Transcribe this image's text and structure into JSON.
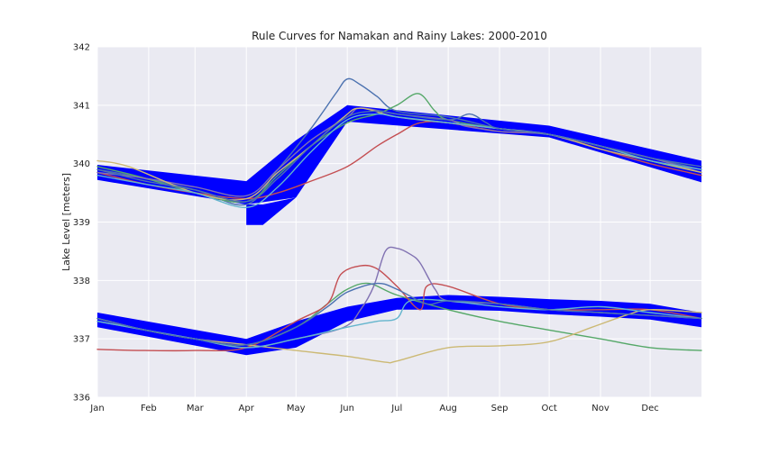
{
  "colors": {
    "background": "#ffffff",
    "plot_area": "#eaeaf2",
    "grid": "#ffffff",
    "rule_band": "#0000ff",
    "series_palette": [
      "#4c72b0",
      "#55a868",
      "#c44e52",
      "#8172b2",
      "#ccb974",
      "#64b5cd"
    ]
  },
  "chart_data": {
    "type": "line",
    "title": "Rule Curves for Namakan and Rainy Lakes: 2000-2010",
    "xlabel": "",
    "ylabel": "Lake Level [meters]",
    "xlim": [
      1,
      366
    ],
    "ylim": [
      336,
      342
    ],
    "yticks": [
      336,
      337,
      338,
      339,
      340,
      341,
      342
    ],
    "xtick_positions": [
      1,
      32,
      60,
      91,
      121,
      152,
      182,
      213,
      244,
      274,
      305,
      335
    ],
    "xtick_labels": [
      "Jan",
      "Feb",
      "Mar",
      "Apr",
      "May",
      "Jun",
      "Jul",
      "Aug",
      "Sep",
      "Oct",
      "Nov",
      "Dec"
    ],
    "grid": true,
    "legend": "none",
    "bands": [
      {
        "lake": "upper",
        "x": [
          1,
          91,
          121,
          152,
          274,
          366
        ],
        "upper": [
          339.98,
          339.7,
          340.4,
          341.0,
          340.65,
          340.05
        ],
        "lower": [
          339.72,
          339.3,
          339.42,
          340.72,
          340.45,
          339.68
        ],
        "extension": {
          "x": [
            91,
            101,
            121
          ],
          "upper": [
            339.3,
            339.3,
            339.42
          ],
          "lower": [
            338.95,
            338.95,
            339.42
          ]
        }
      },
      {
        "lake": "lower",
        "x": [
          1,
          91,
          121,
          152,
          182,
          213,
          244,
          274,
          305,
          335,
          366
        ],
        "upper": [
          337.45,
          337.0,
          337.3,
          337.55,
          337.7,
          337.75,
          337.72,
          337.68,
          337.65,
          337.6,
          337.45
        ],
        "lower": [
          337.2,
          336.72,
          336.85,
          337.3,
          337.5,
          337.5,
          337.48,
          337.42,
          337.38,
          337.33,
          337.2
        ]
      }
    ],
    "series": [
      {
        "lake": "upper",
        "x": [
          1,
          20,
          60,
          91,
          110,
          130,
          145,
          152,
          160,
          170,
          182,
          213,
          244,
          274,
          305,
          335,
          366
        ],
        "values": [
          339.9,
          339.8,
          339.55,
          339.3,
          339.9,
          340.6,
          341.2,
          341.45,
          341.35,
          341.15,
          340.9,
          340.8,
          340.6,
          340.5,
          340.3,
          340.1,
          339.9
        ]
      },
      {
        "lake": "upper",
        "x": [
          1,
          30,
          60,
          91,
          110,
          130,
          152,
          170,
          182,
          195,
          205,
          213,
          244,
          274,
          305,
          335,
          366
        ],
        "values": [
          339.95,
          339.75,
          339.5,
          339.35,
          339.8,
          340.3,
          340.7,
          340.85,
          341.0,
          341.2,
          340.9,
          340.75,
          340.6,
          340.5,
          340.3,
          340.05,
          339.85
        ]
      },
      {
        "lake": "upper",
        "x": [
          1,
          30,
          60,
          91,
          110,
          130,
          152,
          170,
          182,
          196,
          213,
          244,
          274,
          305,
          335,
          366
        ],
        "values": [
          339.85,
          339.65,
          339.5,
          339.4,
          339.5,
          339.7,
          339.95,
          340.3,
          340.5,
          340.7,
          340.7,
          340.55,
          340.5,
          340.25,
          340.0,
          339.8
        ]
      },
      {
        "lake": "upper",
        "x": [
          1,
          30,
          60,
          91,
          110,
          130,
          152,
          160,
          182,
          213,
          222,
          232,
          244,
          274,
          305,
          335,
          366
        ],
        "values": [
          339.85,
          339.75,
          339.6,
          339.45,
          339.9,
          340.4,
          340.8,
          340.95,
          340.85,
          340.75,
          340.65,
          340.6,
          340.55,
          340.5,
          340.3,
          340.1,
          339.85
        ]
      },
      {
        "lake": "upper",
        "x": [
          1,
          20,
          60,
          91,
          110,
          130,
          150,
          160,
          182,
          213,
          244,
          274,
          305,
          335,
          366
        ],
        "values": [
          340.05,
          339.95,
          339.5,
          339.4,
          339.85,
          340.3,
          340.8,
          340.95,
          340.8,
          340.7,
          340.6,
          340.5,
          340.25,
          340.05,
          339.85
        ]
      },
      {
        "lake": "upper",
        "x": [
          1,
          30,
          60,
          91,
          110,
          130,
          152,
          170,
          182,
          213,
          244,
          274,
          305,
          335,
          366
        ],
        "values": [
          339.8,
          339.65,
          339.5,
          339.25,
          339.6,
          340.2,
          340.75,
          340.85,
          340.8,
          340.7,
          340.6,
          340.5,
          340.3,
          340.05,
          339.9
        ]
      },
      {
        "lake": "upper",
        "x": [
          1,
          30,
          60,
          91,
          110,
          130,
          152,
          170,
          182,
          213,
          226,
          236,
          244,
          274,
          305,
          335,
          366
        ],
        "values": [
          339.9,
          339.7,
          339.55,
          339.35,
          339.75,
          340.3,
          340.8,
          340.9,
          340.85,
          340.75,
          340.85,
          340.7,
          340.6,
          340.5,
          340.3,
          340.1,
          339.95
        ]
      },
      {
        "lake": "lower",
        "x": [
          1,
          30,
          60,
          91,
          121,
          140,
          152,
          165,
          182,
          213,
          244,
          274,
          305,
          335,
          366
        ],
        "values": [
          337.35,
          337.15,
          337.0,
          336.9,
          337.2,
          337.6,
          337.85,
          337.95,
          337.75,
          337.5,
          337.3,
          337.15,
          337.0,
          336.85,
          336.8
        ]
      },
      {
        "lake": "lower",
        "x": [
          1,
          30,
          60,
          91,
          121,
          140,
          148,
          160,
          170,
          182,
          196,
          200,
          213,
          244,
          274,
          305,
          335,
          366
        ],
        "values": [
          336.82,
          336.8,
          336.8,
          336.85,
          337.3,
          337.6,
          338.1,
          338.25,
          338.2,
          337.9,
          337.5,
          337.9,
          337.9,
          337.6,
          337.5,
          337.5,
          337.5,
          337.35
        ]
      },
      {
        "lake": "lower",
        "x": [
          1,
          30,
          60,
          91,
          121,
          150,
          160,
          168,
          175,
          182,
          190,
          196,
          205,
          213,
          244,
          274,
          305,
          335,
          366
        ],
        "values": [
          337.3,
          337.15,
          337.0,
          336.85,
          337.0,
          337.2,
          337.5,
          337.9,
          338.5,
          338.55,
          338.45,
          338.3,
          337.85,
          337.65,
          337.6,
          337.5,
          337.45,
          337.4,
          337.35
        ]
      },
      {
        "lake": "lower",
        "x": [
          1,
          30,
          60,
          91,
          121,
          152,
          175,
          182,
          213,
          244,
          274,
          300,
          320,
          335,
          366
        ],
        "values": [
          337.35,
          337.15,
          337.0,
          336.9,
          336.8,
          336.7,
          336.6,
          336.62,
          336.85,
          336.88,
          336.95,
          337.2,
          337.4,
          337.5,
          337.45
        ]
      },
      {
        "lake": "lower",
        "x": [
          1,
          30,
          60,
          91,
          121,
          152,
          170,
          182,
          190,
          213,
          244,
          274,
          305,
          335,
          366
        ],
        "values": [
          337.3,
          337.15,
          337.0,
          336.85,
          337.0,
          337.2,
          337.3,
          337.35,
          337.65,
          337.65,
          337.55,
          337.5,
          337.55,
          337.45,
          337.35
        ]
      },
      {
        "lake": "lower",
        "x": [
          1,
          30,
          60,
          91,
          121,
          140,
          152,
          170,
          182,
          200,
          213,
          244,
          274,
          305,
          335,
          366
        ],
        "values": [
          337.35,
          337.15,
          337.0,
          336.9,
          337.2,
          337.55,
          337.8,
          337.95,
          337.85,
          337.6,
          337.65,
          337.6,
          337.5,
          337.45,
          337.4,
          337.35
        ]
      }
    ]
  }
}
